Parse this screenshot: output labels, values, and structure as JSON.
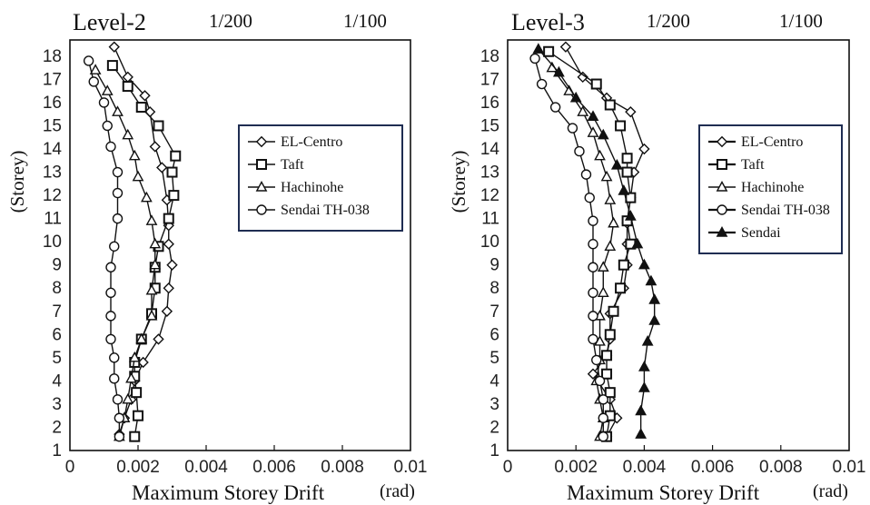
{
  "chart_data": [
    {
      "type": "line",
      "title": "Level-2",
      "top_markers": [
        {
          "label": "1/200",
          "x": 0.005
        },
        {
          "label": "1/100",
          "x": 0.01
        }
      ],
      "xlabel": "Maximum Storey Drift",
      "xunit": "(rad)",
      "ylabel": "(Storey)",
      "xlim": [
        0,
        0.01
      ],
      "ylim": [
        1,
        18.7
      ],
      "xticks": [
        "0",
        "0.002",
        "0.004",
        "0.006",
        "0.008",
        "0.01"
      ],
      "yticks": [
        "1",
        "2",
        "3",
        "4",
        "5",
        "6",
        "7",
        "8",
        "9",
        "10",
        "11",
        "12",
        "13",
        "14",
        "15",
        "16",
        "17",
        "18"
      ],
      "legend_position": "right",
      "series": [
        {
          "name": "EL-Centro",
          "marker": "diamond",
          "x": [
            0.00145,
            0.0016,
            0.0018,
            0.0019,
            0.00215,
            0.0026,
            0.00285,
            0.0029,
            0.003,
            0.0029,
            0.0029,
            0.00285,
            0.0027,
            0.0025,
            0.00235,
            0.0022,
            0.0017,
            0.0013
          ],
          "y": [
            1.7,
            2.4,
            3.2,
            4,
            4.8,
            5.8,
            7,
            8,
            9,
            9.9,
            10.7,
            11.8,
            13.2,
            14.1,
            15.6,
            16.3,
            17.1,
            18.4
          ]
        },
        {
          "name": "Taft",
          "marker": "square",
          "x": [
            0.0019,
            0.002,
            0.00195,
            0.0019,
            0.0019,
            0.0021,
            0.0024,
            0.0025,
            0.0025,
            0.0026,
            0.0029,
            0.00305,
            0.003,
            0.0031,
            0.0026,
            0.0021,
            0.0017,
            0.00125
          ],
          "y": [
            1.6,
            2.5,
            3.5,
            4.2,
            4.8,
            5.8,
            6.9,
            8,
            8.9,
            9.8,
            11,
            12,
            13,
            13.7,
            15,
            15.8,
            16.7,
            17.6
          ]
        },
        {
          "name": "Hachinohe",
          "marker": "triangle",
          "x": [
            0.00145,
            0.0016,
            0.0017,
            0.0018,
            0.0019,
            0.0021,
            0.0024,
            0.0024,
            0.0025,
            0.0025,
            0.0024,
            0.00225,
            0.002,
            0.0019,
            0.0017,
            0.0014,
            0.0011,
            0.00075
          ],
          "y": [
            1.6,
            2.4,
            3.2,
            4.1,
            5,
            5.8,
            6.8,
            7.9,
            9,
            9.9,
            10.9,
            11.9,
            12.8,
            13.7,
            14.6,
            15.6,
            16.5,
            17.4
          ]
        },
        {
          "name": "Sendai TH-038",
          "marker": "circle",
          "x": [
            0.00145,
            0.00145,
            0.0014,
            0.0013,
            0.0013,
            0.0012,
            0.0012,
            0.0012,
            0.0012,
            0.0013,
            0.0014,
            0.0014,
            0.0014,
            0.0012,
            0.0011,
            0.001,
            0.0007,
            0.00055
          ],
          "y": [
            1.6,
            2.4,
            3.2,
            4.1,
            5,
            5.8,
            6.8,
            7.8,
            8.9,
            9.8,
            11,
            12.1,
            13,
            14.1,
            15,
            16,
            16.9,
            17.8
          ]
        }
      ]
    },
    {
      "type": "line",
      "title": "Level-3",
      "top_markers": [
        {
          "label": "1/200",
          "x": 0.005
        },
        {
          "label": "1/100",
          "x": 0.01
        }
      ],
      "xlabel": "Maximum Storey Drift",
      "xunit": "(rad)",
      "ylabel": "(Storey)",
      "xlim": [
        0,
        0.01
      ],
      "ylim": [
        1,
        18.7
      ],
      "xticks": [
        "0",
        "0.002",
        "0.004",
        "0.006",
        "0.008",
        "0.01"
      ],
      "yticks": [
        "1",
        "2",
        "3",
        "4",
        "5",
        "6",
        "7",
        "8",
        "9",
        "10",
        "11",
        "12",
        "13",
        "14",
        "15",
        "16",
        "17",
        "18"
      ],
      "legend_position": "right",
      "series": [
        {
          "name": "EL-Centro",
          "marker": "diamond",
          "x": [
            0.0029,
            0.0032,
            0.003,
            0.0025,
            0.0029,
            0.003,
            0.003,
            0.0034,
            0.0035,
            0.0035,
            0.0035,
            0.0036,
            0.0037,
            0.004,
            0.0036,
            0.0029,
            0.0022,
            0.0017
          ],
          "y": [
            1.6,
            2.4,
            3.2,
            4.3,
            5.1,
            5.8,
            6.9,
            8,
            9,
            9.9,
            10.8,
            11.9,
            13,
            14,
            15.6,
            16.2,
            17.1,
            18.4
          ]
        },
        {
          "name": "Taft",
          "marker": "square",
          "x": [
            0.0029,
            0.003,
            0.003,
            0.0029,
            0.0029,
            0.003,
            0.0031,
            0.0033,
            0.0034,
            0.0036,
            0.0035,
            0.0036,
            0.0035,
            0.0035,
            0.0033,
            0.003,
            0.0026,
            0.0012
          ],
          "y": [
            1.6,
            2.5,
            3.5,
            4.3,
            5.1,
            6,
            7,
            8,
            9,
            9.9,
            10.9,
            11.9,
            13,
            13.6,
            15,
            15.9,
            16.8,
            18.2
          ]
        },
        {
          "name": "Hachinohe",
          "marker": "triangle",
          "x": [
            0.0027,
            0.0028,
            0.0027,
            0.0026,
            0.0027,
            0.0027,
            0.0027,
            0.0028,
            0.0028,
            0.003,
            0.0031,
            0.003,
            0.0029,
            0.0027,
            0.0025,
            0.0022,
            0.0018,
            0.0013
          ],
          "y": [
            1.6,
            2.4,
            3.2,
            4,
            4.9,
            5.7,
            6.8,
            7.8,
            8.9,
            9.8,
            10.8,
            11.8,
            12.8,
            13.7,
            14.7,
            15.6,
            16.5,
            17.5
          ]
        },
        {
          "name": "Sendai TH-038",
          "marker": "circle",
          "x": [
            0.0028,
            0.0028,
            0.0028,
            0.0027,
            0.0026,
            0.0025,
            0.0025,
            0.0025,
            0.0025,
            0.0025,
            0.0025,
            0.0024,
            0.0023,
            0.0021,
            0.0019,
            0.0014,
            0.001,
            0.0008
          ],
          "y": [
            1.6,
            2.4,
            3.2,
            4,
            4.9,
            5.8,
            6.8,
            7.8,
            8.9,
            9.9,
            10.9,
            11.9,
            12.9,
            13.9,
            14.9,
            15.8,
            16.8,
            17.9
          ]
        },
        {
          "name": "Sendai",
          "marker": "filled-triangle",
          "x": [
            0.0039,
            0.0039,
            0.004,
            0.004,
            0.0041,
            0.0043,
            0.0043,
            0.0042,
            0.004,
            0.0038,
            0.0036,
            0.0034,
            0.0032,
            0.0028,
            0.0025,
            0.002,
            0.0015,
            0.0009
          ],
          "y": [
            1.7,
            2.7,
            3.7,
            4.6,
            5.7,
            6.6,
            7.5,
            8.3,
            9,
            9.9,
            11.1,
            12.2,
            13.3,
            14.6,
            15.4,
            16.2,
            17.3,
            18.3
          ]
        }
      ]
    }
  ]
}
